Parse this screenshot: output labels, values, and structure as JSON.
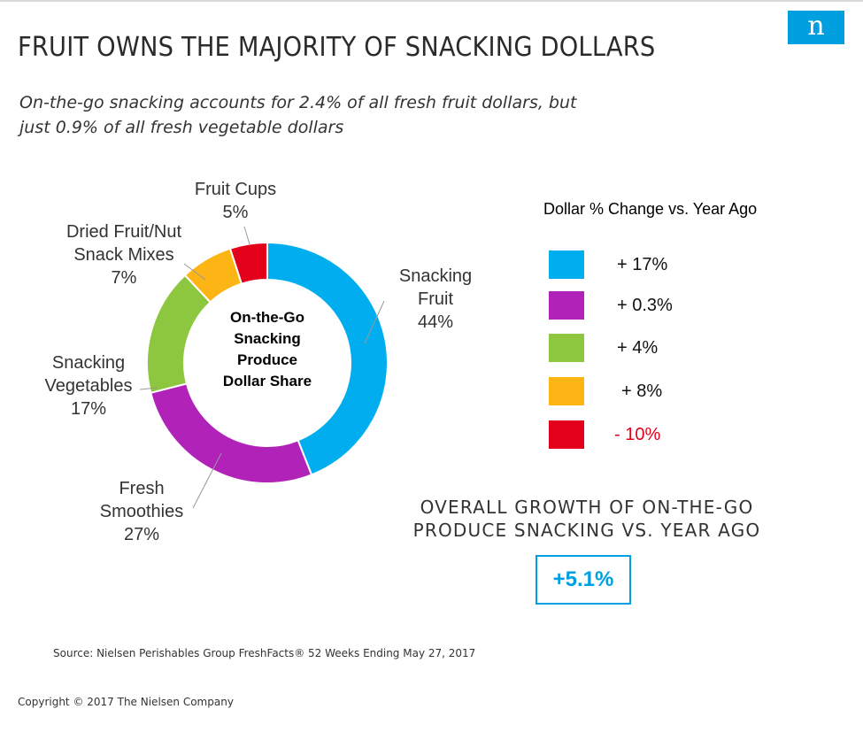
{
  "logo": {
    "letter": "n"
  },
  "title": "FRUIT OWNS THE MAJORITY OF SNACKING DOLLARS",
  "subtitle_lines": [
    "On-the-go snacking accounts for 2.4% of all fresh fruit dollars, but",
    "just 0.9% of all fresh vegetable dollars"
  ],
  "chart_data": {
    "type": "pie",
    "variant": "donut",
    "title": "On-the-Go Snacking Produce Dollar Share",
    "center_label_lines": [
      "On-the-Go",
      "Snacking",
      "Produce",
      "Dollar Share"
    ],
    "slices": [
      {
        "name": "Snacking Fruit",
        "label_lines": [
          "Snacking",
          "Fruit"
        ],
        "value": 44,
        "pct_label": "44%",
        "color": "#00aeef"
      },
      {
        "name": "Fresh Smoothies",
        "label_lines": [
          "Fresh",
          "Smoothies"
        ],
        "value": 27,
        "pct_label": "27%",
        "color": "#b022b8"
      },
      {
        "name": "Snacking Vegetables",
        "label_lines": [
          "Snacking",
          "Vegetables"
        ],
        "value": 17,
        "pct_label": "17%",
        "color": "#8dc63f"
      },
      {
        "name": "Dried Fruit/Nut Snack Mixes",
        "label_lines": [
          "Dried Fruit/Nut",
          "Snack Mixes"
        ],
        "value": 7,
        "pct_label": "7%",
        "color": "#fdb515"
      },
      {
        "name": "Fruit Cups",
        "label_lines": [
          "Fruit Cups"
        ],
        "value": 5,
        "pct_label": "5%",
        "color": "#e2001a"
      }
    ]
  },
  "legend": {
    "title": "Dollar % Change vs. Year Ago",
    "items": [
      {
        "value": "+ 17%",
        "color": "#00aeef",
        "text_color": "#111111"
      },
      {
        "value": "+ 0.3%",
        "color": "#b022b8",
        "text_color": "#111111"
      },
      {
        "value": "+ 4%",
        "color": "#8dc63f",
        "text_color": "#111111"
      },
      {
        "value": "+ 8%",
        "color": "#fdb515",
        "text_color": "#111111"
      },
      {
        "value": "- 10%",
        "color": "#e2001a",
        "text_color": "#e2001a"
      }
    ]
  },
  "overall": {
    "title_lines": [
      "OVERALL GROWTH OF ON-THE-GO",
      "PRODUCE SNACKING VS. YEAR AGO"
    ],
    "value": "+5.1%"
  },
  "source": "Source: Nielsen Perishables Group FreshFacts® 52 Weeks Ending May 27, 2017",
  "copyright": "Copyright © 2017 The Nielsen Company"
}
